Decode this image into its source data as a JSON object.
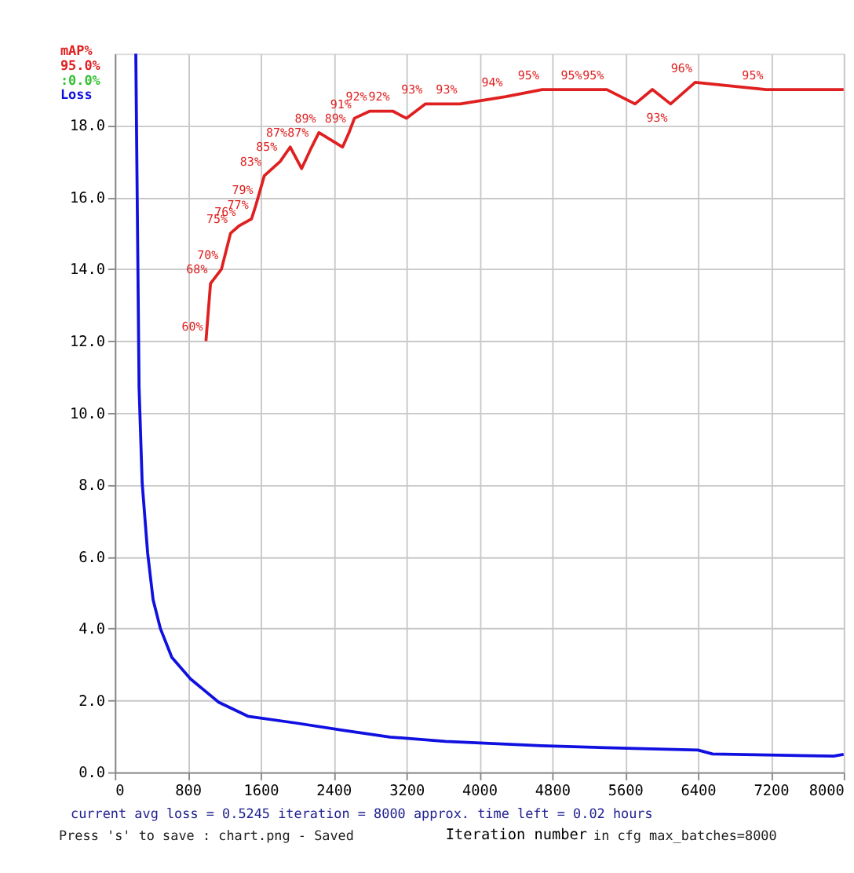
{
  "chart_data": {
    "type": "line",
    "xlabel": "Iteration number",
    "xlim": [
      0,
      8000
    ],
    "xticks": [
      0,
      800,
      1600,
      2400,
      3200,
      4000,
      4800,
      5600,
      6400,
      7200,
      8000
    ],
    "ylim": [
      0,
      20
    ],
    "yticks": [
      {
        "value": 0,
        "label": "0.0"
      },
      {
        "value": 2,
        "label": "2.0"
      },
      {
        "value": 4,
        "label": "4.0"
      },
      {
        "value": 6,
        "label": "6.0"
      },
      {
        "value": 8,
        "label": "8.0"
      },
      {
        "value": 10,
        "label": "10.0"
      },
      {
        "value": 12,
        "label": "12.0"
      },
      {
        "value": 14,
        "label": "14.0"
      },
      {
        "value": 16,
        "label": "16.0"
      },
      {
        "value": 18,
        "label": "18.0"
      }
    ],
    "y2lim": [
      0,
      100
    ],
    "tick_labels": "xy",
    "grid": true,
    "legend": "top left",
    "marker": "none",
    "line_style": "solid",
    "series": [
      {
        "name": "Loss",
        "color": "#1010e0",
        "x": [
          230,
          266,
          300,
          360,
          420,
          500,
          625,
          830,
          1140,
          1460,
          1990,
          2500,
          3020,
          3630,
          4680,
          5710,
          6400,
          6560,
          7890,
          8000
        ],
        "values": [
          20,
          10.7,
          8.05,
          6.1,
          4.8,
          4.0,
          3.2,
          2.6,
          1.95,
          1.56,
          1.37,
          1.17,
          0.98,
          0.86,
          0.74,
          0.66,
          0.62,
          0.51,
          0.45,
          0.5
        ]
      },
      {
        "name": "mAP%",
        "color": "#e02020",
        "axis": "y2",
        "x": [
          1000,
          1050,
          1170,
          1270,
          1360,
          1500,
          1550,
          1640,
          1815,
          1925,
          2050,
          2160,
          2240,
          2500,
          2570,
          2630,
          2800,
          3050,
          3200,
          3410,
          3790,
          4290,
          4690,
          5160,
          5400,
          5710,
          5900,
          6100,
          6370,
          7150,
          8000
        ],
        "values": [
          60,
          68,
          70,
          75,
          76,
          77,
          79,
          83,
          85,
          87,
          84,
          87,
          89,
          87,
          89,
          91,
          92,
          92,
          91,
          93,
          93,
          94,
          95,
          95,
          95,
          93,
          95,
          93,
          96,
          95,
          95
        ],
        "value_labels": [
          "60%",
          "68%",
          "70%",
          "75%",
          "76%",
          "77%",
          "79%",
          "83%",
          "85%",
          "87%",
          null,
          "87%",
          "89%",
          null,
          "89%",
          "91%",
          "92%",
          "92%",
          null,
          "93%",
          "93%",
          "94%",
          "95%",
          "95%",
          "95%",
          null,
          null,
          "93%",
          "96%",
          "95%",
          null
        ]
      }
    ],
    "annotations": [
      "95.0%",
      ":0.0%",
      "current avg loss = 0.5245    iteration = 8000    approx. time left = 0.02 hours",
      "Press 's' to save : chart.png - Saved",
      "in cfg max_batches=8000"
    ]
  }
}
